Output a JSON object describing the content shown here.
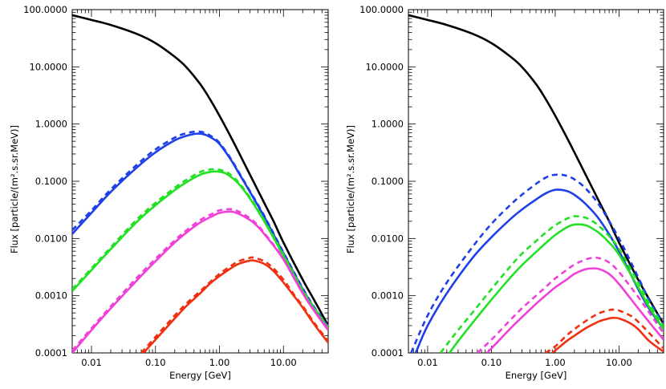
{
  "chart_data": [
    {
      "type": "line",
      "panel": "left",
      "xlabel": "Energy [GeV]",
      "ylabel": "Flux [particle/(m².s.sr.MeV)]",
      "xscale": "log",
      "yscale": "log",
      "xlim": [
        0.005,
        50
      ],
      "ylim": [
        0.0001,
        100
      ],
      "xticks": [
        0.01,
        0.1,
        1,
        10
      ],
      "xtick_labels": [
        "0.01",
        "0.10",
        "1.00",
        "10.00"
      ],
      "yticks": [
        0.0001,
        0.001,
        0.01,
        0.1,
        1,
        10,
        100
      ],
      "ytick_labels": [
        "0.0001",
        "0.0010",
        "0.0100",
        "0.1000",
        "1.0000",
        "10.0000",
        "100.0000"
      ],
      "series": [
        {
          "name": "black solid",
          "color": "#000000",
          "style": "solid",
          "x": [
            0.005,
            0.01,
            0.02,
            0.05,
            0.1,
            0.2,
            0.3,
            0.5,
            0.7,
            1.0,
            1.5,
            2.0,
            3.0,
            5.0,
            7.0,
            10.0,
            20.0,
            30.0,
            50.0
          ],
          "y": [
            80,
            66,
            54,
            38,
            26,
            15,
            10,
            5,
            2.8,
            1.4,
            0.6,
            0.32,
            0.13,
            0.042,
            0.02,
            0.0085,
            0.0019,
            0.00085,
            0.0003
          ]
        },
        {
          "name": "blue solid",
          "color": "#1f3fe8",
          "style": "solid",
          "x": [
            0.005,
            0.01,
            0.02,
            0.05,
            0.1,
            0.2,
            0.3,
            0.45,
            0.6,
            0.8,
            1.0,
            1.5,
            2.0,
            3.0,
            5.0,
            10.0,
            20.0,
            30.0,
            50.0
          ],
          "y": [
            0.012,
            0.028,
            0.065,
            0.17,
            0.32,
            0.52,
            0.62,
            0.68,
            0.65,
            0.55,
            0.45,
            0.24,
            0.14,
            0.065,
            0.024,
            0.0055,
            0.0013,
            0.00062,
            0.00028
          ]
        },
        {
          "name": "blue dashed",
          "color": "#1f3fe8",
          "style": "dashed",
          "x": [
            0.005,
            0.01,
            0.02,
            0.05,
            0.1,
            0.2,
            0.3,
            0.45,
            0.6,
            0.8,
            1.0,
            1.5,
            2.0,
            3.0,
            5.0,
            10.0,
            20.0,
            30.0,
            50.0
          ],
          "y": [
            0.014,
            0.031,
            0.072,
            0.19,
            0.36,
            0.58,
            0.69,
            0.74,
            0.7,
            0.58,
            0.47,
            0.25,
            0.145,
            0.067,
            0.025,
            0.0057,
            0.00135,
            0.00064,
            0.00029
          ]
        },
        {
          "name": "green solid",
          "color": "#22e022",
          "style": "solid",
          "x": [
            0.005,
            0.01,
            0.02,
            0.05,
            0.1,
            0.2,
            0.3,
            0.5,
            0.7,
            0.9,
            1.2,
            1.5,
            2.0,
            3.0,
            5.0,
            10.0,
            20.0,
            30.0,
            50.0
          ],
          "y": [
            0.0012,
            0.0028,
            0.0065,
            0.019,
            0.038,
            0.07,
            0.095,
            0.13,
            0.145,
            0.148,
            0.14,
            0.12,
            0.09,
            0.05,
            0.02,
            0.005,
            0.0012,
            0.0006,
            0.00027
          ]
        },
        {
          "name": "green dashed",
          "color": "#22e022",
          "style": "dashed",
          "x": [
            0.005,
            0.01,
            0.02,
            0.05,
            0.1,
            0.2,
            0.3,
            0.5,
            0.7,
            0.9,
            1.2,
            1.5,
            2.0,
            3.0,
            5.0,
            10.0,
            20.0,
            30.0,
            50.0
          ],
          "y": [
            0.0013,
            0.003,
            0.007,
            0.021,
            0.042,
            0.077,
            0.105,
            0.145,
            0.16,
            0.162,
            0.15,
            0.13,
            0.095,
            0.052,
            0.021,
            0.0052,
            0.00125,
            0.00062,
            0.00028
          ]
        },
        {
          "name": "magenta solid",
          "color": "#f040d8",
          "style": "solid",
          "x": [
            0.005,
            0.01,
            0.02,
            0.05,
            0.1,
            0.2,
            0.3,
            0.5,
            0.8,
            1.0,
            1.5,
            2.0,
            3.0,
            4.0,
            5.0,
            7.0,
            10.0,
            20.0,
            30.0,
            50.0
          ],
          "y": [
            0.0001,
            0.00025,
            0.0006,
            0.0018,
            0.004,
            0.0085,
            0.0125,
            0.019,
            0.025,
            0.028,
            0.0295,
            0.027,
            0.021,
            0.016,
            0.012,
            0.0075,
            0.0043,
            0.0011,
            0.00055,
            0.00025
          ]
        },
        {
          "name": "magenta dashed",
          "color": "#f040d8",
          "style": "dashed",
          "x": [
            0.005,
            0.01,
            0.02,
            0.05,
            0.1,
            0.2,
            0.3,
            0.5,
            0.8,
            1.0,
            1.5,
            2.0,
            3.0,
            4.0,
            5.0,
            7.0,
            10.0,
            20.0,
            30.0,
            50.0
          ],
          "y": [
            0.00011,
            0.00027,
            0.00065,
            0.002,
            0.0044,
            0.0093,
            0.0137,
            0.021,
            0.0275,
            0.031,
            0.0325,
            0.0295,
            0.0225,
            0.017,
            0.0125,
            0.0078,
            0.0044,
            0.00112,
            0.00056,
            0.00026
          ]
        },
        {
          "name": "red solid",
          "color": "#f03010",
          "style": "solid",
          "x": [
            0.065,
            0.1,
            0.2,
            0.3,
            0.5,
            0.7,
            1.0,
            1.5,
            2.0,
            3.0,
            3.5,
            5.0,
            7.0,
            10.0,
            15.0,
            20.0,
            30.0,
            50.0
          ],
          "y": [
            0.0001,
            0.00017,
            0.0004,
            0.00065,
            0.0011,
            0.0016,
            0.0022,
            0.003,
            0.0036,
            0.0041,
            0.0041,
            0.0036,
            0.0027,
            0.0017,
            0.00095,
            0.00062,
            0.00032,
            0.00015
          ]
        },
        {
          "name": "red dashed",
          "color": "#f03010",
          "style": "dashed",
          "x": [
            0.06,
            0.1,
            0.2,
            0.3,
            0.5,
            0.7,
            1.0,
            1.5,
            2.0,
            3.0,
            3.5,
            5.0,
            7.0,
            10.0,
            15.0,
            20.0,
            30.0,
            50.0
          ],
          "y": [
            0.0001,
            0.00019,
            0.00045,
            0.00072,
            0.0012,
            0.0017,
            0.0024,
            0.0033,
            0.004,
            0.0046,
            0.0046,
            0.004,
            0.003,
            0.0019,
            0.001,
            0.00066,
            0.00034,
            0.00016
          ]
        }
      ]
    },
    {
      "type": "line",
      "panel": "right",
      "xlabel": "Energy [GeV]",
      "ylabel": "Flux [particle/(m².s.sr.MeV)]",
      "xscale": "log",
      "yscale": "log",
      "xlim": [
        0.005,
        50
      ],
      "ylim": [
        0.0001,
        100
      ],
      "xticks": [
        0.01,
        0.1,
        1,
        10
      ],
      "xtick_labels": [
        "0.01",
        "0.10",
        "1.00",
        "10.00"
      ],
      "yticks": [
        0.0001,
        0.001,
        0.01,
        0.1,
        1,
        10,
        100
      ],
      "ytick_labels": [
        "0.0001",
        "0.0010",
        "0.0100",
        "0.1000",
        "1.0000",
        "10.0000",
        "100.0000"
      ],
      "series": [
        {
          "name": "black solid",
          "color": "#000000",
          "style": "solid",
          "x": [
            0.005,
            0.01,
            0.02,
            0.05,
            0.1,
            0.2,
            0.3,
            0.5,
            0.7,
            1.0,
            1.5,
            2.0,
            3.0,
            5.0,
            7.0,
            10.0,
            20.0,
            30.0,
            50.0
          ],
          "y": [
            80,
            66,
            54,
            38,
            26,
            15,
            10,
            5,
            2.8,
            1.4,
            0.6,
            0.32,
            0.13,
            0.042,
            0.02,
            0.0085,
            0.0019,
            0.00085,
            0.00032
          ]
        },
        {
          "name": "blue solid",
          "color": "#1f3fe8",
          "style": "solid",
          "x": [
            0.0065,
            0.01,
            0.02,
            0.05,
            0.1,
            0.2,
            0.3,
            0.5,
            0.7,
            1.0,
            1.5,
            2.0,
            3.0,
            5.0,
            10.0,
            20.0,
            30.0,
            50.0
          ],
          "y": [
            0.0001,
            0.0003,
            0.0011,
            0.0045,
            0.0105,
            0.022,
            0.032,
            0.048,
            0.061,
            0.071,
            0.068,
            0.058,
            0.04,
            0.021,
            0.006,
            0.0013,
            0.00058,
            0.00026
          ]
        },
        {
          "name": "blue dashed",
          "color": "#1f3fe8",
          "style": "dashed",
          "x": [
            0.0055,
            0.01,
            0.02,
            0.05,
            0.1,
            0.2,
            0.3,
            0.5,
            0.7,
            0.9,
            1.2,
            1.5,
            2.0,
            3.0,
            5.0,
            10.0,
            20.0,
            30.0,
            50.0
          ],
          "y": [
            0.0001,
            0.00045,
            0.0017,
            0.007,
            0.018,
            0.039,
            0.058,
            0.09,
            0.115,
            0.128,
            0.13,
            0.125,
            0.108,
            0.075,
            0.037,
            0.01,
            0.0021,
            0.00082,
            0.00032
          ]
        },
        {
          "name": "green solid",
          "color": "#22e022",
          "style": "solid",
          "x": [
            0.022,
            0.03,
            0.05,
            0.1,
            0.2,
            0.3,
            0.5,
            0.7,
            1.0,
            1.5,
            2.0,
            3.0,
            4.0,
            5.0,
            7.0,
            10.0,
            20.0,
            30.0,
            50.0
          ],
          "y": [
            0.0001,
            0.00016,
            0.00033,
            0.00085,
            0.0021,
            0.0034,
            0.0058,
            0.0082,
            0.0115,
            0.0155,
            0.0175,
            0.017,
            0.0145,
            0.0122,
            0.0085,
            0.0052,
            0.0014,
            0.00062,
            0.00026
          ]
        },
        {
          "name": "green dashed",
          "color": "#22e022",
          "style": "dashed",
          "x": [
            0.016,
            0.02,
            0.03,
            0.05,
            0.1,
            0.2,
            0.3,
            0.5,
            0.7,
            1.0,
            1.5,
            2.0,
            3.0,
            4.0,
            5.0,
            7.0,
            10.0,
            20.0,
            30.0,
            50.0
          ],
          "y": [
            0.0001,
            0.00014,
            0.00025,
            0.0005,
            0.0013,
            0.0033,
            0.0054,
            0.009,
            0.0125,
            0.017,
            0.022,
            0.0245,
            0.023,
            0.0195,
            0.016,
            0.011,
            0.0066,
            0.0017,
            0.00072,
            0.00029
          ]
        },
        {
          "name": "magenta solid",
          "color": "#f040d8",
          "style": "solid",
          "x": [
            0.085,
            0.1,
            0.2,
            0.3,
            0.5,
            0.7,
            1.0,
            1.5,
            2.0,
            3.0,
            4.0,
            5.0,
            7.0,
            10.0,
            20.0,
            30.0,
            50.0
          ],
          "y": [
            0.0001,
            0.00012,
            0.00027,
            0.00042,
            0.00072,
            0.001,
            0.0014,
            0.0019,
            0.0024,
            0.0029,
            0.003,
            0.0029,
            0.0024,
            0.0016,
            0.0006,
            0.00034,
            0.00017
          ]
        },
        {
          "name": "magenta dashed",
          "color": "#f040d8",
          "style": "dashed",
          "x": [
            0.06,
            0.1,
            0.2,
            0.3,
            0.5,
            0.7,
            1.0,
            1.5,
            2.0,
            3.0,
            4.0,
            5.0,
            7.0,
            10.0,
            20.0,
            30.0,
            50.0
          ],
          "y": [
            0.0001,
            0.00017,
            0.00038,
            0.0006,
            0.001,
            0.0014,
            0.002,
            0.0028,
            0.0035,
            0.0043,
            0.0046,
            0.0045,
            0.0038,
            0.0026,
            0.00095,
            0.0005,
            0.00022
          ]
        },
        {
          "name": "red solid",
          "color": "#f03010",
          "style": "solid",
          "x": [
            0.9,
            1.0,
            1.5,
            2.0,
            3.0,
            4.0,
            5.0,
            7.0,
            8.0,
            10.0,
            15.0,
            20.0,
            30.0,
            50.0
          ],
          "y": [
            0.0001,
            0.00011,
            0.00016,
            0.0002,
            0.00027,
            0.00032,
            0.00036,
            0.0004,
            0.00041,
            0.0004,
            0.00033,
            0.00026,
            0.00016,
            0.000105
          ]
        },
        {
          "name": "red dashed",
          "color": "#f03010",
          "style": "dashed",
          "x": [
            0.7,
            1.0,
            1.5,
            2.0,
            3.0,
            4.0,
            5.0,
            7.0,
            8.0,
            10.0,
            15.0,
            20.0,
            30.0,
            50.0
          ],
          "y": [
            0.0001,
            0.00013,
            0.0002,
            0.00026,
            0.00036,
            0.00044,
            0.0005,
            0.00056,
            0.00057,
            0.00055,
            0.00045,
            0.00035,
            0.00022,
            0.00012
          ]
        }
      ]
    }
  ]
}
